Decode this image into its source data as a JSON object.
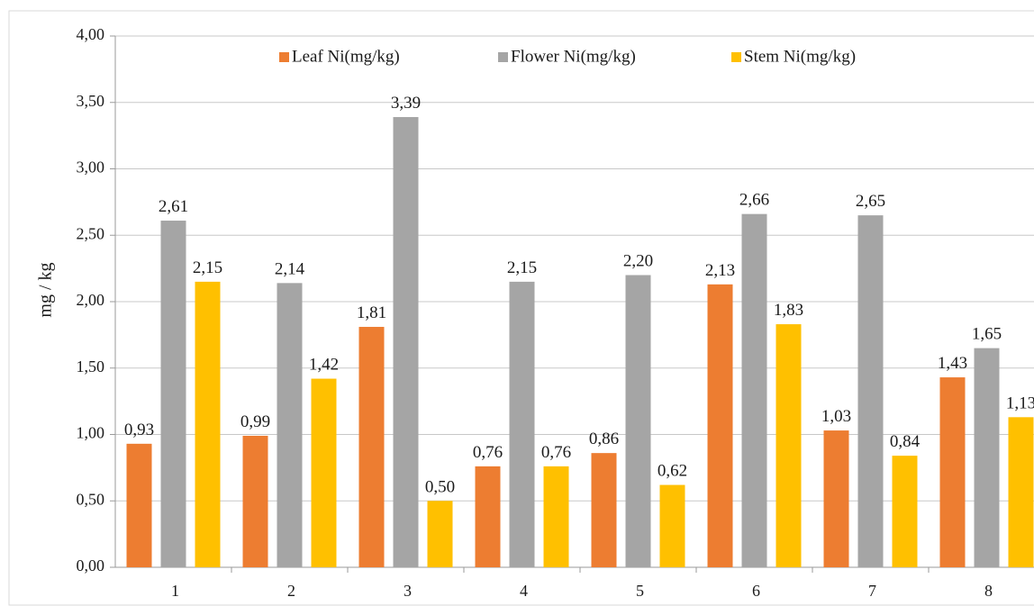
{
  "chart_data": {
    "type": "bar",
    "categories": [
      "1",
      "2",
      "3",
      "4",
      "5",
      "6",
      "7",
      "8"
    ],
    "series": [
      {
        "name": "Leaf Ni(mg/kg)",
        "color": "#ED7D31",
        "values": [
          0.93,
          0.99,
          1.81,
          0.76,
          0.86,
          2.13,
          1.03,
          1.43
        ],
        "labels": [
          "0,93",
          "0,99",
          "1,81",
          "0,76",
          "0,86",
          "2,13",
          "1,03",
          "1,43"
        ]
      },
      {
        "name": "Flower Ni(mg/kg)",
        "color": "#A5A5A5",
        "values": [
          2.61,
          2.14,
          3.39,
          2.15,
          2.2,
          2.66,
          2.65,
          1.65
        ],
        "labels": [
          "2,61",
          "2,14",
          "3,39",
          "2,15",
          "2,20",
          "2,66",
          "2,65",
          "1,65"
        ]
      },
      {
        "name": "Stem Ni(mg/kg)",
        "color": "#FFC000",
        "values": [
          2.15,
          1.42,
          0.5,
          0.76,
          0.62,
          1.83,
          0.84,
          1.13
        ],
        "labels": [
          "2,15",
          "1,42",
          "0,50",
          "0,76",
          "0,62",
          "1,83",
          "0,84",
          "1,13"
        ]
      }
    ],
    "ylabel": "mg / kg",
    "ylim": [
      0,
      4
    ],
    "yticks": [
      0,
      0.5,
      1.0,
      1.5,
      2.0,
      2.5,
      3.0,
      3.5,
      4.0
    ],
    "ytick_labels": [
      "0,00",
      "0,50",
      "1,00",
      "1,50",
      "2,00",
      "2,50",
      "3,00",
      "3,50",
      "4,00"
    ],
    "grid": true,
    "legend_position": "top"
  }
}
